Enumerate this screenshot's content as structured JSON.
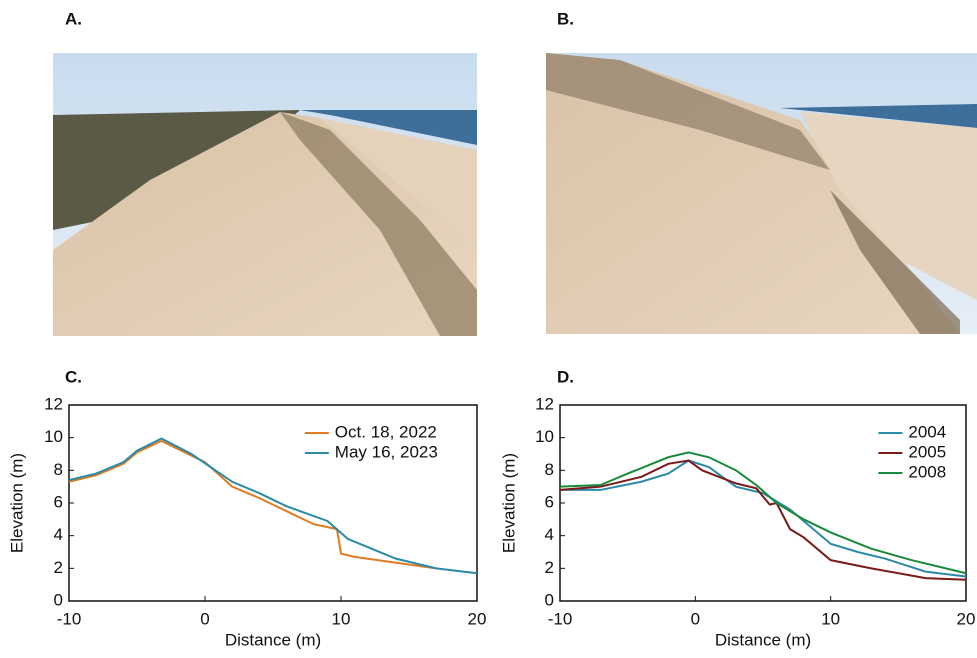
{
  "panels": {
    "a": "A.",
    "b": "B."
  },
  "chart_data": [
    {
      "type": "line",
      "title": "C.",
      "xlabel": "Distance (m)",
      "ylabel": "Elevation (m)",
      "xlim": [
        -10,
        20
      ],
      "ylim": [
        0,
        12
      ],
      "xticks": [
        -10,
        0,
        10,
        20
      ],
      "yticks": [
        0,
        2,
        4,
        6,
        8,
        10,
        12
      ],
      "legend": "upper right",
      "series": [
        {
          "name": "Oct. 18, 2022",
          "color": "#e07b20",
          "x": [
            -10,
            -8,
            -6,
            -5,
            -3.2,
            0,
            2,
            4,
            6,
            8,
            9.7,
            10,
            11,
            17
          ],
          "values": [
            7.3,
            7.7,
            8.4,
            9.1,
            9.8,
            8.5,
            7.0,
            6.3,
            5.5,
            4.7,
            4.4,
            2.9,
            2.7,
            2.0
          ]
        },
        {
          "name": "May 16, 2023",
          "color": "#2a8aa8",
          "x": [
            -10,
            -8,
            -6,
            -5,
            -3.2,
            -1,
            2,
            4,
            6,
            8,
            9,
            10.5,
            14,
            17,
            20
          ],
          "values": [
            7.4,
            7.8,
            8.5,
            9.2,
            9.95,
            9.0,
            7.3,
            6.6,
            5.8,
            5.2,
            4.9,
            3.8,
            2.6,
            2.0,
            1.7
          ]
        }
      ]
    },
    {
      "type": "line",
      "title": "D.",
      "xlabel": "Distance (m)",
      "ylabel": "Elevation (m)",
      "xlim": [
        -10,
        20
      ],
      "ylim": [
        0,
        12
      ],
      "xticks": [
        -10,
        0,
        10,
        20
      ],
      "yticks": [
        0,
        2,
        4,
        6,
        8,
        10,
        12
      ],
      "legend": "upper right",
      "series": [
        {
          "name": "2004",
          "color": "#2a8aa8",
          "x": [
            -10,
            -7,
            -4,
            -2,
            -0.5,
            1,
            3,
            5,
            7,
            9,
            10,
            12,
            14,
            17,
            20
          ],
          "values": [
            6.8,
            6.8,
            7.3,
            7.8,
            8.6,
            8.2,
            7.0,
            6.6,
            5.6,
            4.2,
            3.5,
            3.0,
            2.6,
            1.8,
            1.5
          ]
        },
        {
          "name": "2005",
          "color": "#7a1a1a",
          "x": [
            -10,
            -7,
            -4,
            -2,
            -0.5,
            0.5,
            3,
            4.5,
            5.5,
            6,
            7,
            8,
            10,
            13,
            17,
            20
          ],
          "values": [
            6.8,
            7.0,
            7.6,
            8.4,
            8.6,
            8.0,
            7.2,
            6.9,
            5.9,
            6.0,
            4.4,
            3.9,
            2.5,
            2.0,
            1.4,
            1.3
          ]
        },
        {
          "name": "2008",
          "color": "#1a8a3a",
          "x": [
            -10,
            -7,
            -5,
            -2,
            -0.5,
            1,
            3,
            4.5,
            6,
            8,
            10,
            13,
            16,
            20
          ],
          "values": [
            7.0,
            7.1,
            7.8,
            8.8,
            9.1,
            8.8,
            8.0,
            7.1,
            6.0,
            5.0,
            4.2,
            3.2,
            2.5,
            1.7
          ]
        }
      ]
    }
  ]
}
